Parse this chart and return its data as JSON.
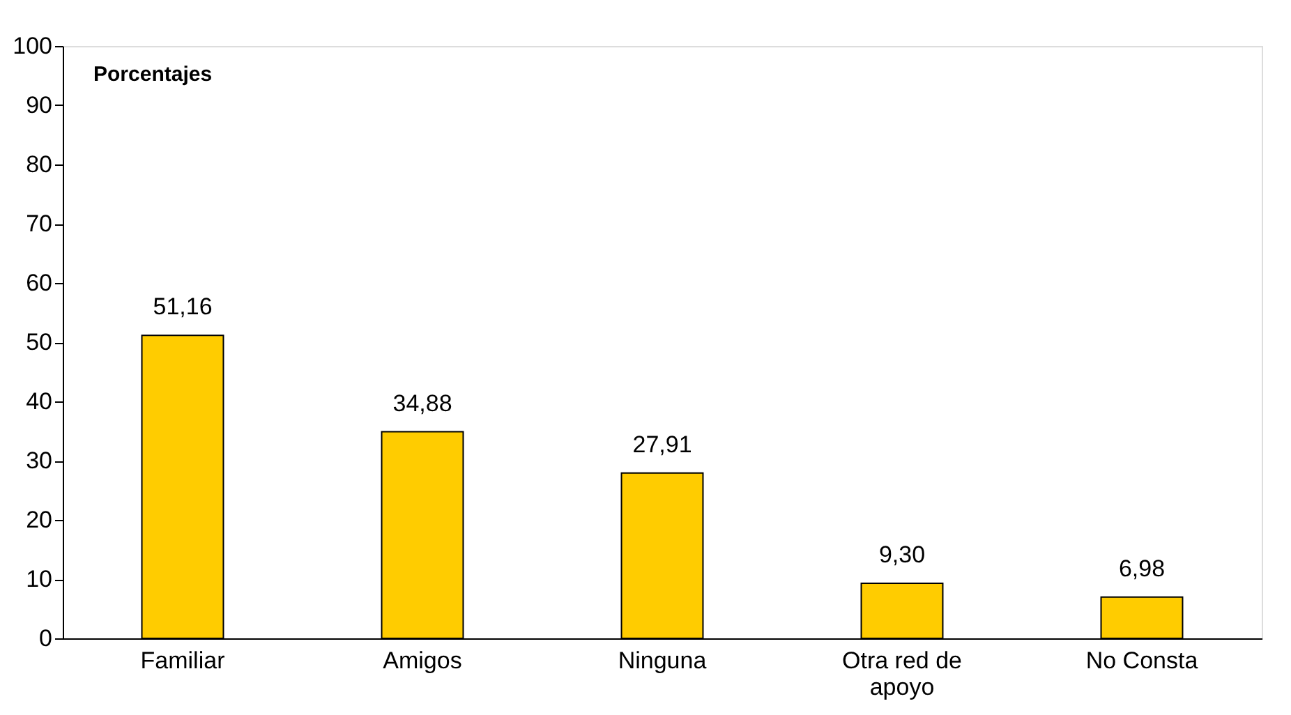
{
  "chart_data": {
    "type": "bar",
    "title": "Porcentajes",
    "categories": [
      "Familiar",
      "Amigos",
      "Ninguna",
      "Otra red de apoyo",
      "No Consta"
    ],
    "values": [
      51.16,
      34.88,
      27.91,
      9.3,
      6.98
    ],
    "value_labels": [
      "51,16",
      "34,88",
      "27,91",
      "9,30",
      "6,98"
    ],
    "color": "#ffcc00",
    "ylim": [
      0,
      100
    ],
    "yticks": [
      0,
      10,
      20,
      30,
      40,
      50,
      60,
      70,
      80,
      90,
      100
    ],
    "grid": false
  }
}
